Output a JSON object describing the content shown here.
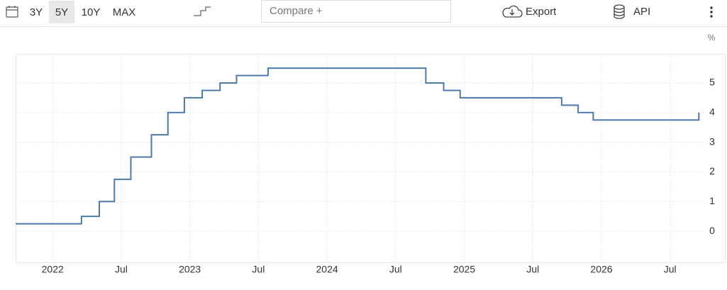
{
  "toolbar": {
    "ranges": [
      "3Y",
      "5Y",
      "10Y",
      "MAX"
    ],
    "selected_range": "5Y",
    "compare": "Compare +",
    "export": "Export",
    "api": "API"
  },
  "chart_data": {
    "type": "line",
    "step": "post",
    "y_unit": "%",
    "color": "#4e7aab",
    "x": [
      2021.73,
      2022.21,
      2022.34,
      2022.45,
      2022.57,
      2022.72,
      2022.84,
      2022.96,
      2023.09,
      2023.22,
      2023.34,
      2023.57,
      2024.72,
      2024.85,
      2024.97,
      2025.71,
      2025.83,
      2025.94,
      2026.71
    ],
    "values": [
      0.25,
      0.5,
      1.0,
      1.75,
      2.5,
      3.25,
      4.0,
      4.5,
      4.75,
      5.0,
      5.25,
      5.5,
      5.0,
      4.75,
      4.5,
      4.25,
      4.0,
      3.75,
      4.0
    ],
    "xlim": [
      2021.73,
      2026.76
    ],
    "xticks": [
      {
        "value": 2022,
        "label": "2022"
      },
      {
        "value": 2022.5,
        "label": "Jul"
      },
      {
        "value": 2023,
        "label": "2023"
      },
      {
        "value": 2023.5,
        "label": "Jul"
      },
      {
        "value": 2024,
        "label": "2024"
      },
      {
        "value": 2024.5,
        "label": "Jul"
      },
      {
        "value": 2025,
        "label": "2025"
      },
      {
        "value": 2025.5,
        "label": "Jul"
      },
      {
        "value": 2026,
        "label": "2026"
      },
      {
        "value": 2026.5,
        "label": "Jul"
      }
    ],
    "ylim": [
      -1.05,
      5.98
    ],
    "yticks": [
      0,
      1,
      2,
      3,
      4,
      5
    ],
    "grid": true
  }
}
